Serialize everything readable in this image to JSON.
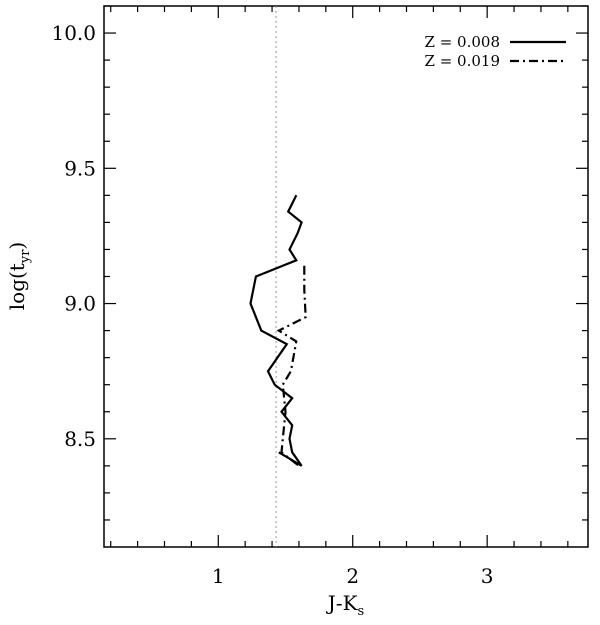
{
  "chart_data": {
    "type": "line",
    "title": "",
    "xlabel": {
      "main": "J-K",
      "sub": "s"
    },
    "ylabel": {
      "main": "log(t",
      "sub": "yr",
      "close": ")"
    },
    "xlim": [
      0.15,
      3.75
    ],
    "ylim": [
      8.1,
      10.1
    ],
    "xticks": [
      1,
      2,
      3
    ],
    "xtick_labels": [
      "1",
      "2",
      "3"
    ],
    "yticks": [
      8.5,
      9.0,
      9.5,
      10.0
    ],
    "ytick_labels": [
      "8.5",
      "9.0",
      "9.5",
      "10.0"
    ],
    "grid": false,
    "legend_position": "top-right",
    "reference_line": {
      "orientation": "vertical",
      "x": 1.43,
      "style": "dotted",
      "color": "#999999"
    },
    "series": [
      {
        "name": "Z = 0.008",
        "style": "solid",
        "points": [
          [
            1.58,
            9.4
          ],
          [
            1.52,
            9.34
          ],
          [
            1.62,
            9.3
          ],
          [
            1.59,
            9.26
          ],
          [
            1.53,
            9.2
          ],
          [
            1.58,
            9.16
          ],
          [
            1.28,
            9.1
          ],
          [
            1.24,
            9.0
          ],
          [
            1.32,
            8.9
          ],
          [
            1.51,
            8.85
          ],
          [
            1.37,
            8.75
          ],
          [
            1.42,
            8.7
          ],
          [
            1.55,
            8.65
          ],
          [
            1.47,
            8.6
          ],
          [
            1.55,
            8.55
          ],
          [
            1.53,
            8.5
          ],
          [
            1.55,
            8.45
          ],
          [
            1.62,
            8.4
          ],
          [
            1.45,
            8.45
          ]
        ]
      },
      {
        "name": "Z = 0.019",
        "style": "dashdot",
        "points": [
          [
            1.64,
            9.14
          ],
          [
            1.64,
            9.05
          ],
          [
            1.65,
            8.95
          ],
          [
            1.45,
            8.9
          ],
          [
            1.58,
            8.86
          ],
          [
            1.54,
            8.75
          ],
          [
            1.48,
            8.7
          ],
          [
            1.5,
            8.6
          ],
          [
            1.48,
            8.5
          ],
          [
            1.47,
            8.45
          ],
          [
            1.6,
            8.4
          ]
        ]
      }
    ]
  }
}
